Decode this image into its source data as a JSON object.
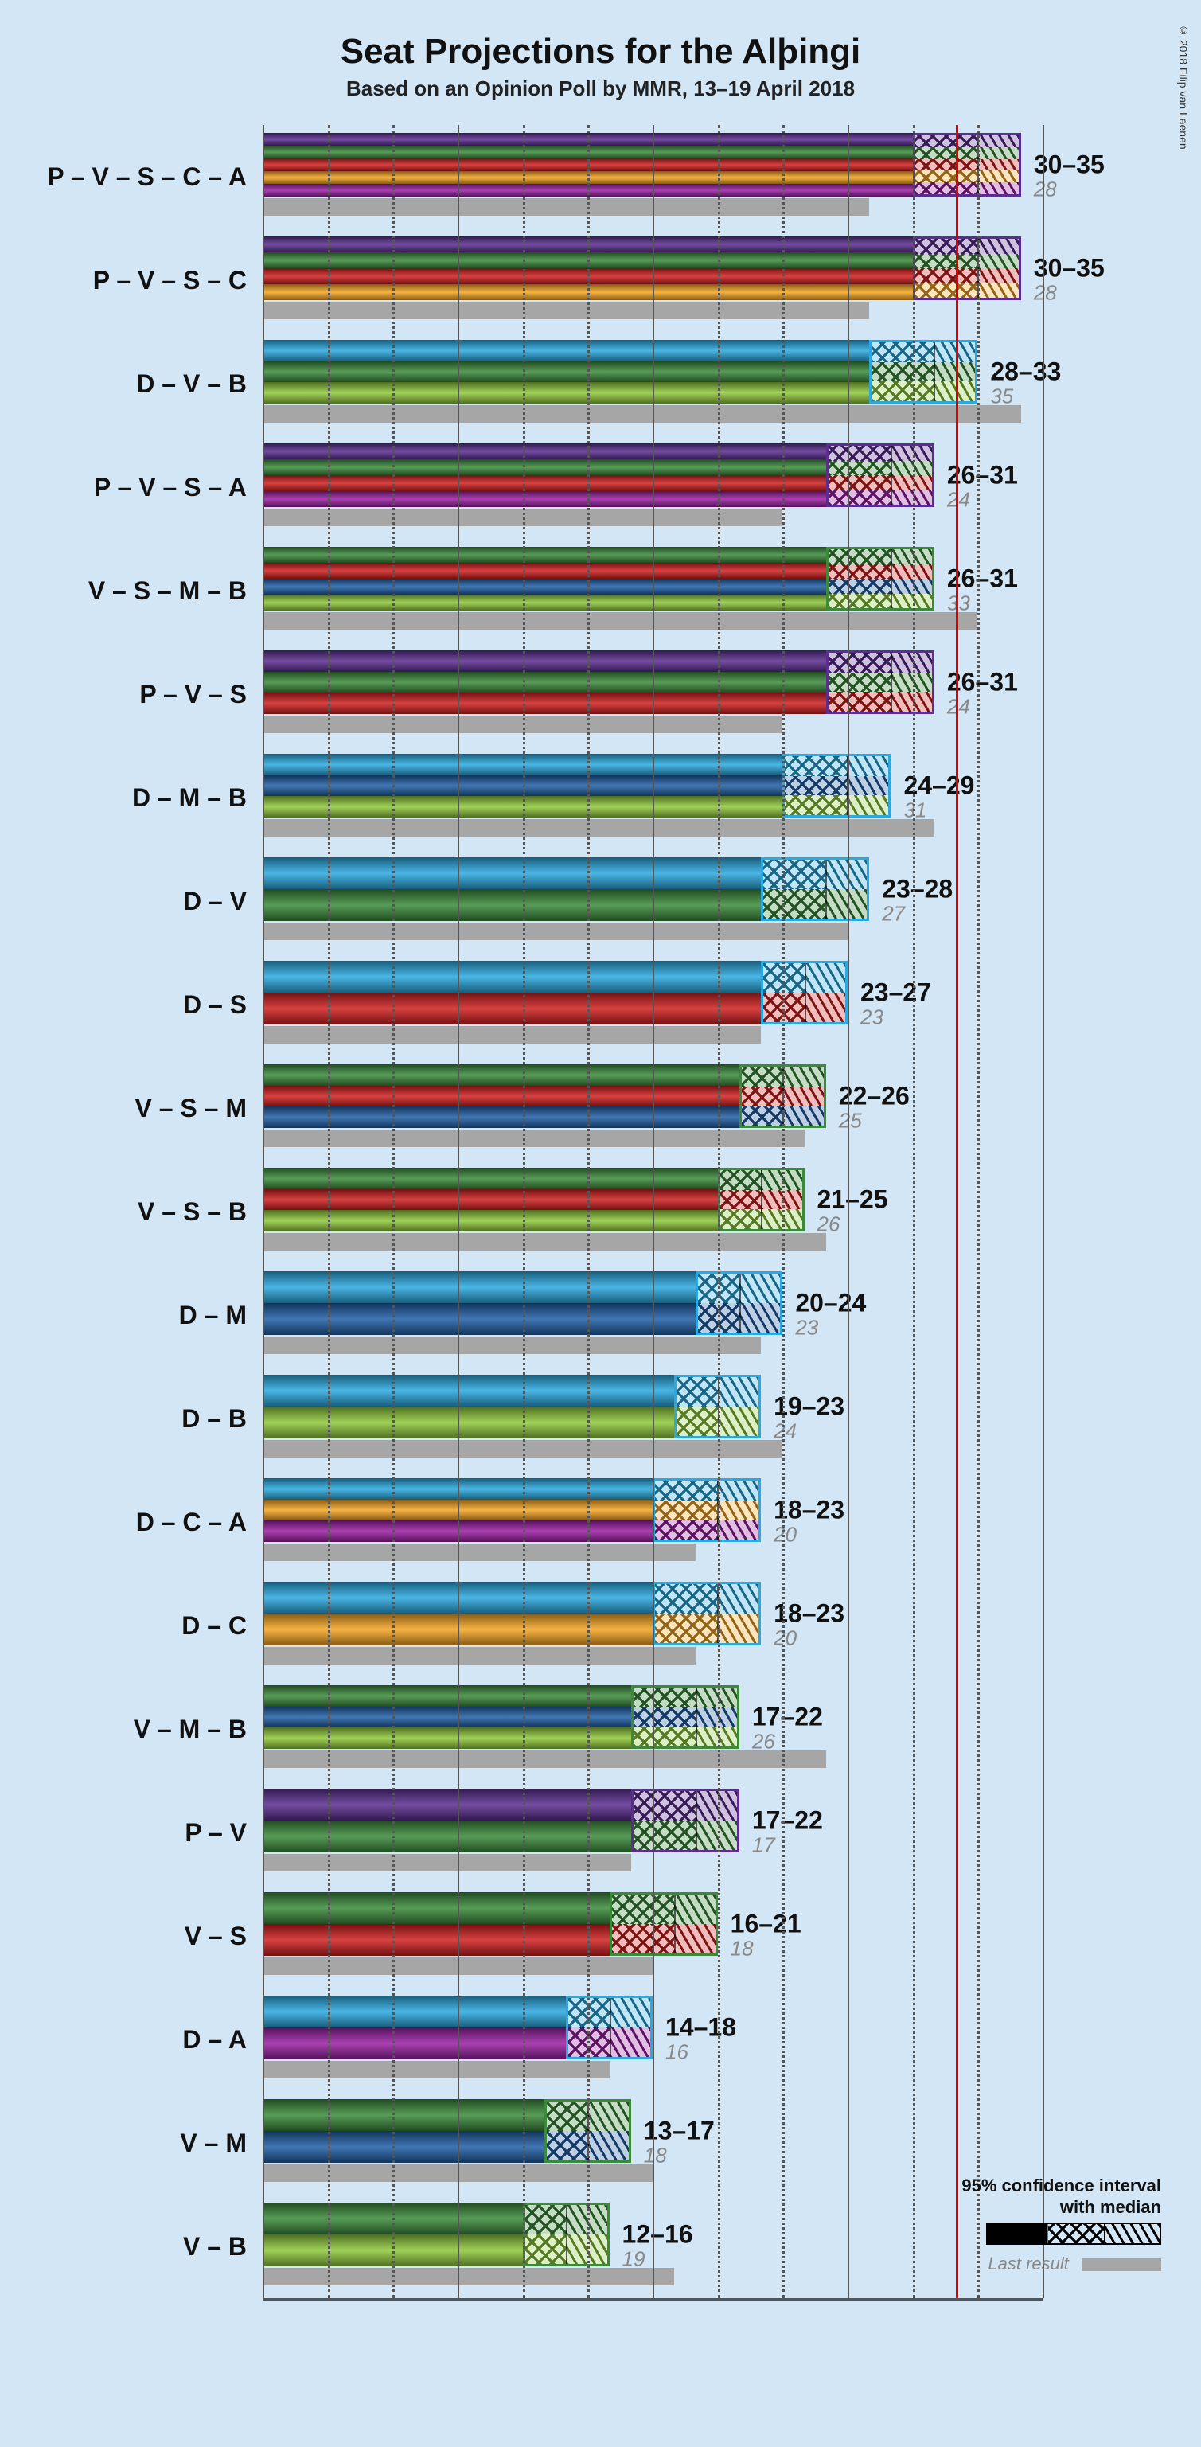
{
  "copyright": "© 2018 Filip van Laenen",
  "title": "Seat Projections for the Alþingi",
  "subtitle": "Based on an Opinion Poll by MMR, 13–19 April 2018",
  "background_color": "#d3e6f5",
  "axis": {
    "max": 36,
    "major_ticks": [
      0,
      9,
      18,
      27,
      36
    ],
    "minor_ticks": [
      3,
      6,
      12,
      15,
      21,
      24,
      30,
      33
    ],
    "majority": 32
  },
  "party_colors": {
    "P": "#5b2d90",
    "V": "#3a8a3a",
    "S": "#d11f1f",
    "C": "#f5a623",
    "A": "#9b1fa3",
    "D": "#2aa9e0",
    "B": "#8fc93a",
    "M": "#1f5fa6"
  },
  "coalitions": [
    {
      "label": "P – V – S – C – A",
      "parties": [
        "P",
        "V",
        "S",
        "C",
        "A"
      ],
      "low": 30,
      "high": 35,
      "median": 33,
      "last": 28
    },
    {
      "label": "P – V – S – C",
      "parties": [
        "P",
        "V",
        "S",
        "C"
      ],
      "low": 30,
      "high": 35,
      "median": 33,
      "last": 28
    },
    {
      "label": "D – V – B",
      "parties": [
        "D",
        "V",
        "B"
      ],
      "low": 28,
      "high": 33,
      "median": 31,
      "last": 35
    },
    {
      "label": "P – V – S – A",
      "parties": [
        "P",
        "V",
        "S",
        "A"
      ],
      "low": 26,
      "high": 31,
      "median": 29,
      "last": 24
    },
    {
      "label": "V – S – M – B",
      "parties": [
        "V",
        "S",
        "M",
        "B"
      ],
      "low": 26,
      "high": 31,
      "median": 29,
      "last": 33
    },
    {
      "label": "P – V – S",
      "parties": [
        "P",
        "V",
        "S"
      ],
      "low": 26,
      "high": 31,
      "median": 29,
      "last": 24
    },
    {
      "label": "D – M – B",
      "parties": [
        "D",
        "M",
        "B"
      ],
      "low": 24,
      "high": 29,
      "median": 27,
      "last": 31
    },
    {
      "label": "D – V",
      "parties": [
        "D",
        "V"
      ],
      "low": 23,
      "high": 28,
      "median": 26,
      "last": 27
    },
    {
      "label": "D – S",
      "parties": [
        "D",
        "S"
      ],
      "low": 23,
      "high": 27,
      "median": 25,
      "last": 23
    },
    {
      "label": "V – S – M",
      "parties": [
        "V",
        "S",
        "M"
      ],
      "low": 22,
      "high": 26,
      "median": 24,
      "last": 25
    },
    {
      "label": "V – S – B",
      "parties": [
        "V",
        "S",
        "B"
      ],
      "low": 21,
      "high": 25,
      "median": 23,
      "last": 26
    },
    {
      "label": "D – M",
      "parties": [
        "D",
        "M"
      ],
      "low": 20,
      "high": 24,
      "median": 22,
      "last": 23
    },
    {
      "label": "D – B",
      "parties": [
        "D",
        "B"
      ],
      "low": 19,
      "high": 23,
      "median": 21,
      "last": 24
    },
    {
      "label": "D – C – A",
      "parties": [
        "D",
        "C",
        "A"
      ],
      "low": 18,
      "high": 23,
      "median": 21,
      "last": 20
    },
    {
      "label": "D – C",
      "parties": [
        "D",
        "C"
      ],
      "low": 18,
      "high": 23,
      "median": 21,
      "last": 20
    },
    {
      "label": "V – M – B",
      "parties": [
        "V",
        "M",
        "B"
      ],
      "low": 17,
      "high": 22,
      "median": 20,
      "last": 26
    },
    {
      "label": "P – V",
      "parties": [
        "P",
        "V"
      ],
      "low": 17,
      "high": 22,
      "median": 20,
      "last": 17
    },
    {
      "label": "V – S",
      "parties": [
        "V",
        "S"
      ],
      "low": 16,
      "high": 21,
      "median": 19,
      "last": 18
    },
    {
      "label": "D – A",
      "parties": [
        "D",
        "A"
      ],
      "low": 14,
      "high": 18,
      "median": 16,
      "last": 16
    },
    {
      "label": "V – M",
      "parties": [
        "V",
        "M"
      ],
      "low": 13,
      "high": 17,
      "median": 15,
      "last": 18
    },
    {
      "label": "V – B",
      "parties": [
        "V",
        "B"
      ],
      "low": 12,
      "high": 16,
      "median": 14,
      "last": 19
    }
  ],
  "legend": {
    "ci_label": "95% confidence interval\nwith median",
    "last_label": "Last result"
  }
}
